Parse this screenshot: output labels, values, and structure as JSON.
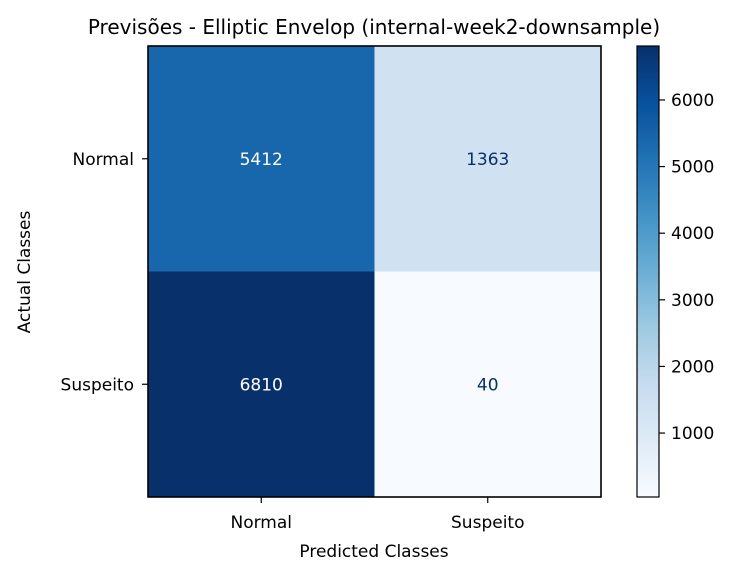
{
  "chart_data": {
    "type": "heatmap",
    "title": "Previsões - Elliptic Envelop (internal-week2-downsample)",
    "xlabel": "Predicted Classes",
    "ylabel": "Actual Classes",
    "x_categories": [
      "Normal",
      "Suspeito"
    ],
    "y_categories": [
      "Normal",
      "Suspeito"
    ],
    "values": [
      [
        5412,
        1363
      ],
      [
        6810,
        40
      ]
    ],
    "colormap": "Blues",
    "vmin": 40,
    "vmax": 6810,
    "colorbar_ticks": [
      1000,
      2000,
      3000,
      4000,
      5000,
      6000
    ],
    "colorbar_tick_labels": [
      "1000",
      "2000",
      "3000",
      "4000",
      "5000",
      "6000"
    ]
  }
}
